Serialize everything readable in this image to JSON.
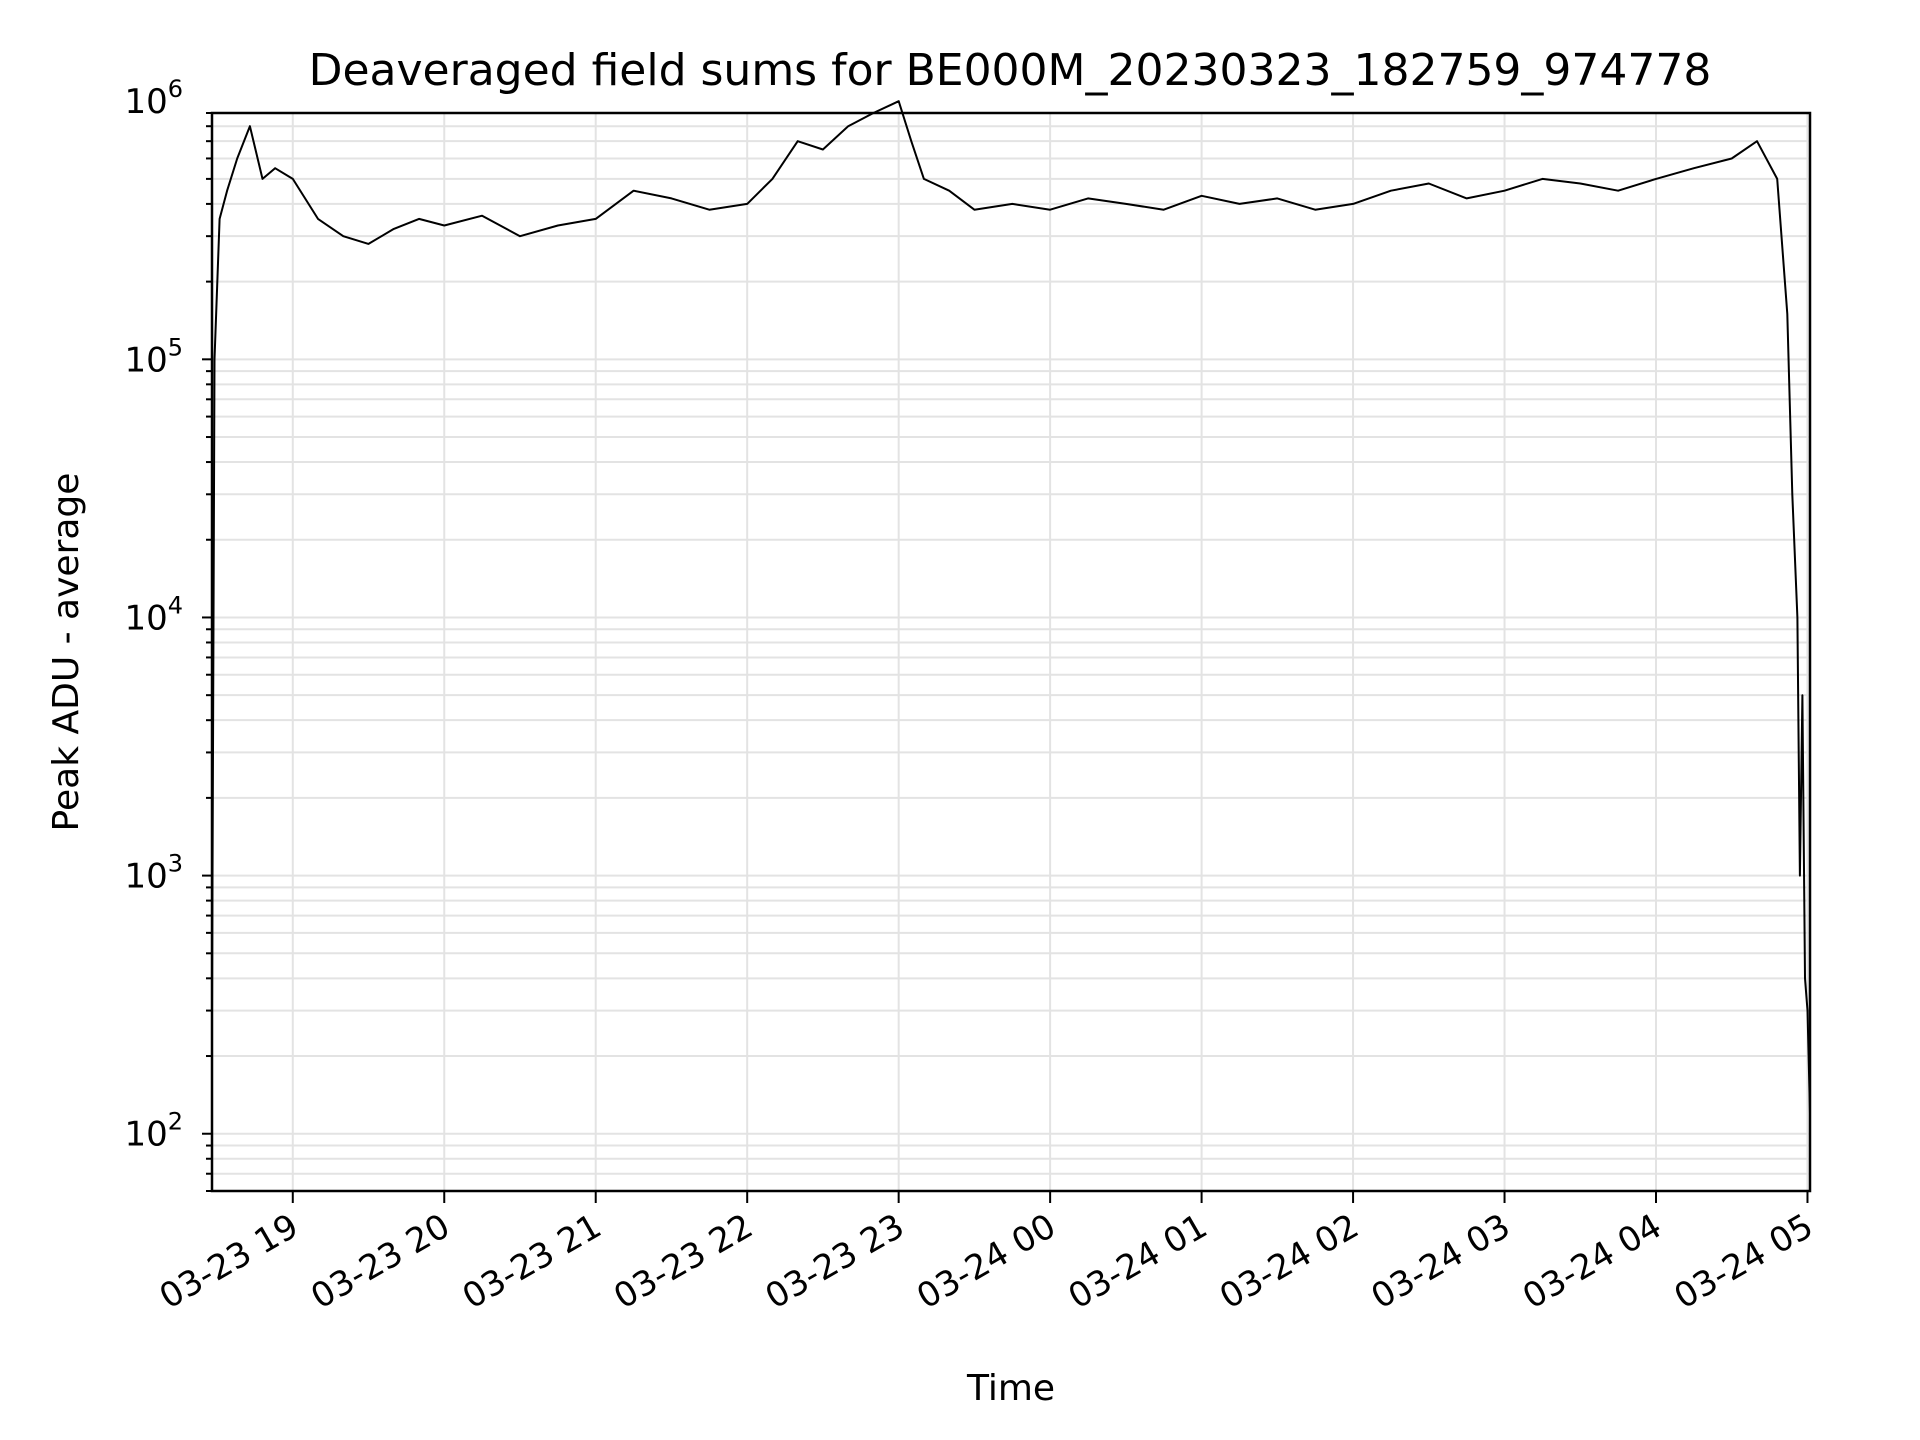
{
  "chart_data": {
    "type": "line",
    "title": "Deaveraged field sums for BE000M_20230323_182759_974778",
    "xlabel": "Time",
    "ylabel": "Peak ADU - average",
    "yscale": "log",
    "ylim": [
      60,
      900000
    ],
    "xlim": [
      "03-23 18:28",
      "03-24 05:01"
    ],
    "grid": true,
    "x_ticks": [
      "03-23 19",
      "03-23 20",
      "03-23 21",
      "03-23 22",
      "03-23 23",
      "03-24 00",
      "03-24 01",
      "03-24 02",
      "03-24 03",
      "03-24 04",
      "03-24 05"
    ],
    "y_ticks": [
      {
        "base": "10",
        "exp": "2",
        "value": 100
      },
      {
        "base": "10",
        "exp": "3",
        "value": 1000
      },
      {
        "base": "10",
        "exp": "4",
        "value": 10000
      },
      {
        "base": "10",
        "exp": "5",
        "value": 100000
      },
      {
        "base": "10",
        "exp": "6",
        "value": 1000000
      }
    ],
    "line_color": "#000000",
    "series": [
      {
        "x": [
          "03-23 18:28",
          "03-23 18:29",
          "03-23 18:31",
          "03-23 18:34",
          "03-23 18:38",
          "03-23 18:43",
          "03-23 18:48",
          "03-23 18:53",
          "03-23 19:00",
          "03-23 19:10",
          "03-23 19:20",
          "03-23 19:30",
          "03-23 19:40",
          "03-23 19:50",
          "03-23 20:00",
          "03-23 20:15",
          "03-23 20:30",
          "03-23 20:45",
          "03-23 21:00",
          "03-23 21:15",
          "03-23 21:30",
          "03-23 21:45",
          "03-23 22:00",
          "03-23 22:10",
          "03-23 22:20",
          "03-23 22:30",
          "03-23 22:40",
          "03-23 22:50",
          "03-23 23:00",
          "03-23 23:05",
          "03-23 23:10",
          "03-23 23:20",
          "03-23 23:30",
          "03-23 23:45",
          "03-24 00:00",
          "03-24 00:15",
          "03-24 00:30",
          "03-24 00:45",
          "03-24 01:00",
          "03-24 01:15",
          "03-24 01:30",
          "03-24 01:45",
          "03-24 02:00",
          "03-24 02:15",
          "03-24 02:30",
          "03-24 02:45",
          "03-24 03:00",
          "03-24 03:15",
          "03-24 03:30",
          "03-24 03:45",
          "03-24 04:00",
          "03-24 04:15",
          "03-24 04:30",
          "03-24 04:40",
          "03-24 04:48",
          "03-24 04:52",
          "03-24 04:54",
          "03-24 04:56",
          "03-24 04:57",
          "03-24 04:58",
          "03-24 04:59",
          "03-24 05:00",
          "03-24 05:01"
        ],
        "y": [
          300,
          100000,
          350000,
          450000,
          600000,
          800000,
          500000,
          550000,
          500000,
          350000,
          300000,
          280000,
          320000,
          350000,
          330000,
          360000,
          300000,
          330000,
          350000,
          450000,
          420000,
          380000,
          400000,
          500000,
          700000,
          650000,
          800000,
          900000,
          1000000,
          700000,
          500000,
          450000,
          380000,
          400000,
          380000,
          420000,
          400000,
          380000,
          430000,
          400000,
          420000,
          380000,
          400000,
          450000,
          480000,
          420000,
          450000,
          500000,
          480000,
          450000,
          500000,
          550000,
          600000,
          700000,
          500000,
          150000,
          30000,
          10000,
          1000,
          5000,
          400,
          300,
          120
        ]
      }
    ]
  }
}
